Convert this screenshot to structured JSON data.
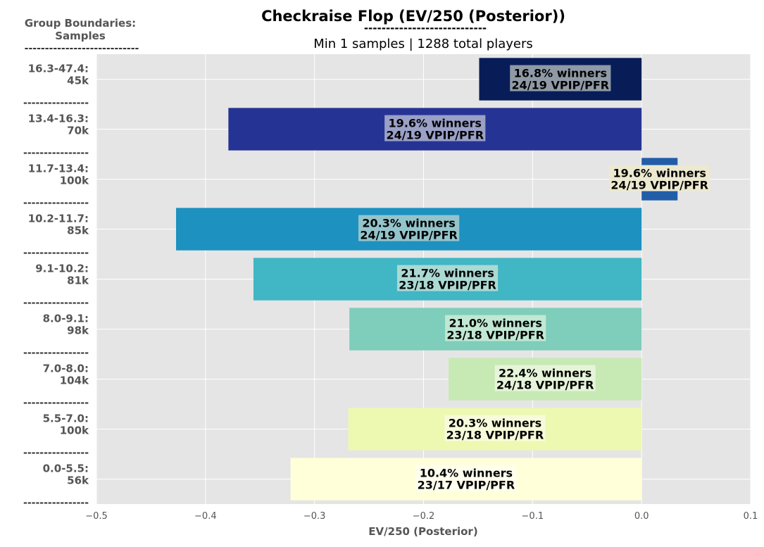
{
  "chart_data": {
    "type": "bar",
    "orientation": "horizontal",
    "title": "Checkraise Flop (EV/250 (Posterior))",
    "title_underline": "----------------------------",
    "subtitle": "Min 1 samples | 1288 total players",
    "xlabel": "EV/250 (Posterior)",
    "ylabel_header": [
      "Group Boundaries:",
      "Samples"
    ],
    "ylabel_header_underline": "----------------------------",
    "separator": "----------------",
    "xlim": [
      -0.5,
      0.1
    ],
    "xticks": [
      -0.5,
      -0.4,
      -0.3,
      -0.2,
      -0.1,
      0.0,
      0.1
    ],
    "xtick_labels": [
      "−0.5",
      "−0.4",
      "−0.3",
      "−0.2",
      "−0.1",
      "0.0",
      "0.1"
    ],
    "grid": true,
    "categories": [
      {
        "range": "16.3-47.4:",
        "samples": "45k"
      },
      {
        "range": "13.4-16.3:",
        "samples": "70k"
      },
      {
        "range": "11.7-13.4:",
        "samples": "100k"
      },
      {
        "range": "10.2-11.7:",
        "samples": "85k"
      },
      {
        "range": "9.1-10.2:",
        "samples": "81k"
      },
      {
        "range": "8.0-9.1:",
        "samples": "98k"
      },
      {
        "range": "7.0-8.0:",
        "samples": "104k"
      },
      {
        "range": "5.5-7.0:",
        "samples": "100k"
      },
      {
        "range": "0.0-5.5:",
        "samples": "56k"
      }
    ],
    "values": [
      -0.149,
      -0.379,
      0.033,
      -0.427,
      -0.356,
      -0.268,
      -0.177,
      -0.269,
      -0.322
    ],
    "labels": [
      {
        "winners": "16.8% winners",
        "vpip": "24/19 VPIP/PFR"
      },
      {
        "winners": "19.6% winners",
        "vpip": "24/19 VPIP/PFR"
      },
      {
        "winners": "19.6% winners",
        "vpip": "24/19 VPIP/PFR"
      },
      {
        "winners": "20.3% winners",
        "vpip": "24/19 VPIP/PFR"
      },
      {
        "winners": "21.7% winners",
        "vpip": "23/18 VPIP/PFR"
      },
      {
        "winners": "21.0% winners",
        "vpip": "23/18 VPIP/PFR"
      },
      {
        "winners": "22.4% winners",
        "vpip": "24/18 VPIP/PFR"
      },
      {
        "winners": "20.3% winners",
        "vpip": "23/18 VPIP/PFR"
      },
      {
        "winners": "10.4% winners",
        "vpip": "23/17 VPIP/PFR"
      }
    ],
    "colors": [
      "#081d58",
      "#253494",
      "#225ea8",
      "#1d91c0",
      "#41b6c4",
      "#7fcdbb",
      "#c7e9b4",
      "#edf8b1",
      "#ffffd9"
    ],
    "label_box_colors": [
      "#8f9aa6",
      "#9aa0c6",
      "#ede9d0",
      "#94c4cb",
      "#abd9d3",
      "#c0e8d3",
      "#e6f4d9",
      "#f7fbd9",
      "#ffffee"
    ]
  }
}
